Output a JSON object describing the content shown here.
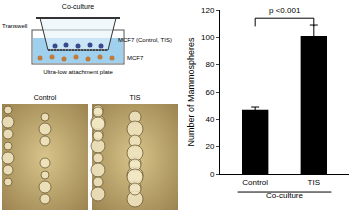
{
  "chart_data": {
    "type": "bar",
    "categories": [
      "Control",
      "TIS"
    ],
    "values": [
      47,
      101
    ],
    "errors": [
      2,
      8
    ],
    "color": "#000000",
    "ylabel": "Number of Mammospheres",
    "xlabel": "Co-culture",
    "ylim": [
      0,
      120
    ],
    "yticks": [
      0,
      20,
      40,
      60,
      80,
      100,
      120
    ],
    "annotations": [
      {
        "text": "p <0.001"
      }
    ],
    "grid": false
  },
  "diagram": {
    "title": "Co-culture",
    "labels": [
      "Transwell",
      "MCF7 (Control, TIS)",
      "Ultra-low attachment plate",
      "MCF7"
    ]
  },
  "micrographs": {
    "labels": [
      "Control",
      "TIS"
    ]
  }
}
